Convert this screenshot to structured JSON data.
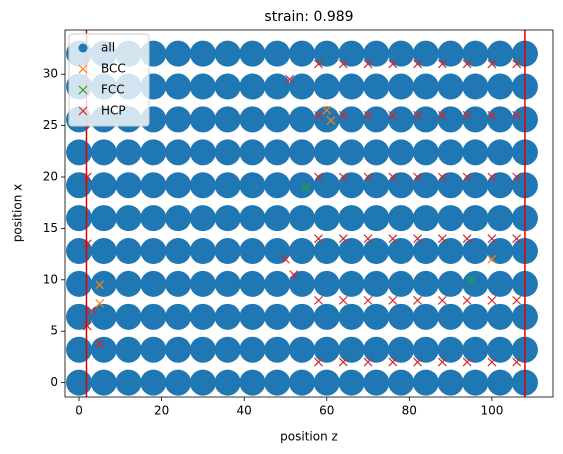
{
  "chart_data": {
    "type": "scatter",
    "title": "strain: 0.989",
    "xlabel": "position z",
    "ylabel": "position x",
    "xlim": [
      -3.4,
      114.8
    ],
    "ylim": [
      -1.4,
      34.3
    ],
    "xticks": [
      0,
      20,
      40,
      60,
      80,
      100
    ],
    "yticks": [
      0,
      5,
      10,
      15,
      20,
      25,
      30
    ],
    "legend": "upper left",
    "vlines": [
      1.8,
      108
    ],
    "vline_color": "#e00000",
    "series": [
      {
        "name": "all",
        "color": "#1f77b4",
        "marker": "o",
        "x": [
          0,
          6,
          12,
          18,
          24,
          30,
          36,
          42,
          48,
          54,
          60,
          66,
          72,
          78,
          84,
          90,
          96,
          102,
          108,
          0,
          6,
          12,
          18,
          24,
          30,
          36,
          42,
          48,
          54,
          60,
          66,
          72,
          78,
          84,
          90,
          96,
          102,
          108,
          0,
          6,
          12,
          18,
          24,
          30,
          36,
          42,
          48,
          54,
          60,
          66,
          72,
          78,
          84,
          90,
          96,
          102,
          108,
          0,
          6,
          12,
          18,
          24,
          30,
          36,
          42,
          48,
          54,
          60,
          66,
          72,
          78,
          84,
          90,
          96,
          102,
          108,
          0,
          6,
          12,
          18,
          24,
          30,
          36,
          42,
          48,
          54,
          60,
          66,
          72,
          78,
          84,
          90,
          96,
          102,
          108,
          0,
          6,
          12,
          18,
          24,
          30,
          36,
          42,
          48,
          54,
          60,
          66,
          72,
          78,
          84,
          90,
          96,
          102,
          108,
          0,
          6,
          12,
          18,
          24,
          30,
          36,
          42,
          48,
          54,
          60,
          66,
          72,
          78,
          84,
          90,
          96,
          102,
          108,
          0,
          6,
          12,
          18,
          24,
          30,
          36,
          42,
          48,
          54,
          60,
          66,
          72,
          78,
          84,
          90,
          96,
          102,
          108,
          0,
          6,
          12,
          18,
          24,
          30,
          36,
          42,
          48,
          54,
          60,
          66,
          72,
          78,
          84,
          90,
          96,
          102,
          108,
          0,
          6,
          12,
          18,
          24,
          30,
          36,
          42,
          48,
          54,
          60,
          66,
          72,
          78,
          84,
          90,
          96,
          102,
          108,
          0,
          6,
          12,
          18,
          24,
          30,
          36,
          42,
          48,
          54,
          60,
          66,
          72,
          78,
          84,
          90,
          96,
          102,
          108
        ],
        "values": [
          0,
          0,
          0,
          0,
          0,
          0,
          0,
          0,
          0,
          0,
          0,
          0,
          0,
          0,
          0,
          0,
          0,
          0,
          0,
          3.2,
          3.2,
          3.2,
          3.2,
          3.2,
          3.2,
          3.2,
          3.2,
          3.2,
          3.2,
          3.2,
          3.2,
          3.2,
          3.2,
          3.2,
          3.2,
          3.2,
          3.2,
          3.2,
          6.4,
          6.4,
          6.4,
          6.4,
          6.4,
          6.4,
          6.4,
          6.4,
          6.4,
          6.4,
          6.4,
          6.4,
          6.4,
          6.4,
          6.4,
          6.4,
          6.4,
          6.4,
          6.4,
          9.6,
          9.6,
          9.6,
          9.6,
          9.6,
          9.6,
          9.6,
          9.6,
          9.6,
          9.6,
          9.6,
          9.6,
          9.6,
          9.6,
          9.6,
          9.6,
          9.6,
          9.6,
          9.6,
          12.8,
          12.8,
          12.8,
          12.8,
          12.8,
          12.8,
          12.8,
          12.8,
          12.8,
          12.8,
          12.8,
          12.8,
          12.8,
          12.8,
          12.8,
          12.8,
          12.8,
          12.8,
          12.8,
          16,
          16,
          16,
          16,
          16,
          16,
          16,
          16,
          16,
          16,
          16,
          16,
          16,
          16,
          16,
          16,
          16,
          16,
          16,
          19.2,
          19.2,
          19.2,
          19.2,
          19.2,
          19.2,
          19.2,
          19.2,
          19.2,
          19.2,
          19.2,
          19.2,
          19.2,
          19.2,
          19.2,
          19.2,
          19.2,
          19.2,
          19.2,
          22.4,
          22.4,
          22.4,
          22.4,
          22.4,
          22.4,
          22.4,
          22.4,
          22.4,
          22.4,
          22.4,
          22.4,
          22.4,
          22.4,
          22.4,
          22.4,
          22.4,
          22.4,
          22.4,
          25.6,
          25.6,
          25.6,
          25.6,
          25.6,
          25.6,
          25.6,
          25.6,
          25.6,
          25.6,
          25.6,
          25.6,
          25.6,
          25.6,
          25.6,
          25.6,
          25.6,
          25.6,
          25.6,
          28.8,
          28.8,
          28.8,
          28.8,
          28.8,
          28.8,
          28.8,
          28.8,
          28.8,
          28.8,
          28.8,
          28.8,
          28.8,
          28.8,
          28.8,
          28.8,
          28.8,
          28.8,
          28.8,
          32,
          32,
          32,
          32,
          32,
          32,
          32,
          32,
          32,
          32,
          32,
          32,
          32,
          32,
          32,
          32,
          32,
          32,
          32
        ]
      },
      {
        "name": "BCC",
        "color": "#ff7f0e",
        "marker": "x",
        "x": [
          5,
          5,
          60,
          61,
          100
        ],
        "values": [
          9.5,
          7.7,
          26.5,
          25.5,
          12
        ]
      },
      {
        "name": "FCC",
        "color": "#2ca02c",
        "marker": "x",
        "x": [
          55,
          95
        ],
        "values": [
          19,
          10
        ]
      },
      {
        "name": "HCP",
        "color": "#d62728",
        "marker": "x",
        "x": [
          2,
          2,
          2,
          3,
          5,
          50,
          52,
          51,
          58,
          64,
          70,
          76,
          82,
          88,
          94,
          100,
          106,
          58,
          64,
          70,
          76,
          82,
          88,
          94,
          100,
          106,
          58,
          64,
          70,
          76,
          82,
          88,
          94,
          100,
          106,
          58,
          64,
          70,
          76,
          82,
          88,
          94,
          100,
          106,
          58,
          64,
          70,
          76,
          82,
          88,
          94,
          100,
          106,
          58,
          64,
          70,
          76,
          82,
          88,
          94,
          100,
          106
        ],
        "values": [
          20,
          13.5,
          5.5,
          7,
          3.8,
          12,
          10.5,
          29.5,
          2,
          2,
          2,
          2,
          2,
          2,
          2,
          2,
          2,
          8,
          8,
          8,
          8,
          8,
          8,
          8,
          8,
          8,
          14,
          14,
          14,
          14,
          14,
          14,
          14,
          14,
          14,
          20,
          20,
          20,
          20,
          20,
          20,
          20,
          20,
          20,
          26,
          26,
          26,
          26,
          26,
          26,
          26,
          26,
          26,
          31,
          31,
          31,
          31,
          31,
          31,
          31,
          31,
          31
        ]
      }
    ]
  }
}
